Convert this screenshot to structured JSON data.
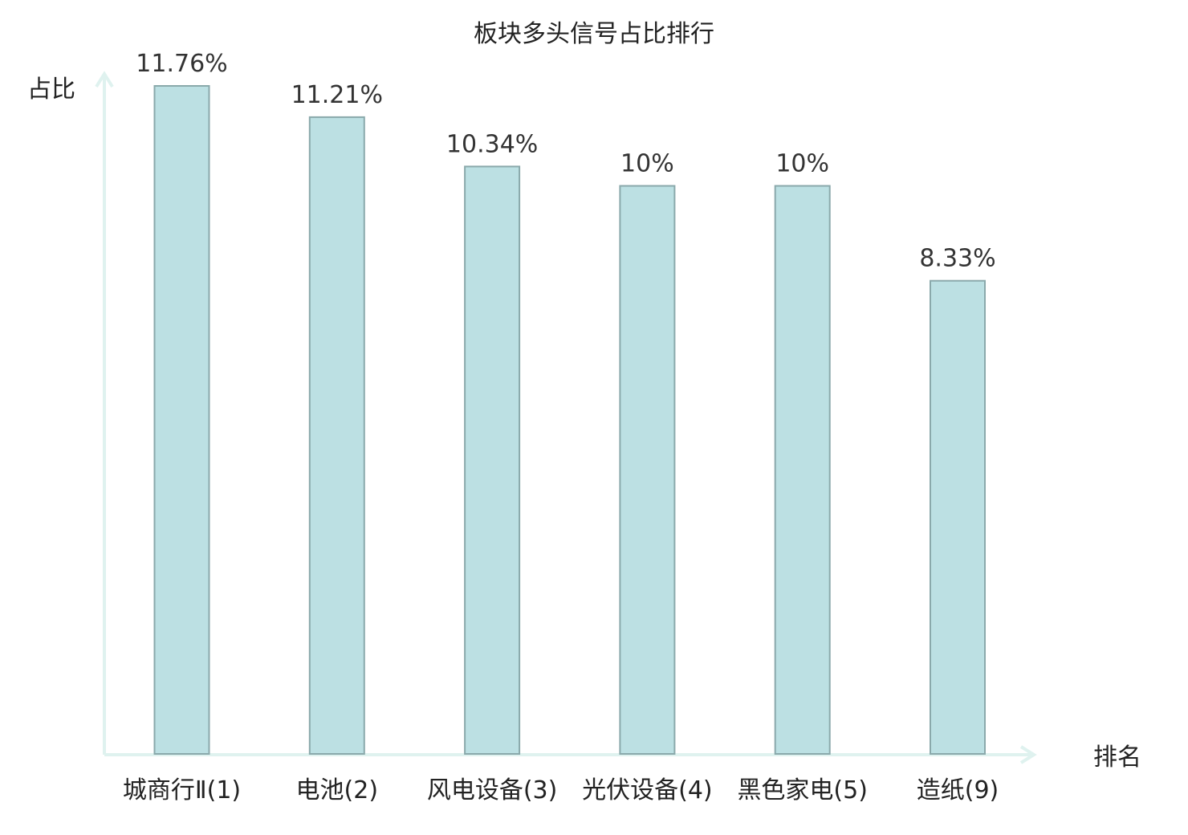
{
  "chart_data": {
    "type": "bar",
    "title": "板块多头信号占比排行",
    "xlabel": "排名",
    "ylabel": "占比",
    "categories": [
      "城商行Ⅱ(1)",
      "电池(2)",
      "风电设备(3)",
      "光伏设备(4)",
      "黑色家电(5)",
      "造纸(9)"
    ],
    "values": [
      11.76,
      11.21,
      10.34,
      10,
      10,
      8.33
    ],
    "value_labels": [
      "11.76%",
      "11.21%",
      "10.34%",
      "10%",
      "10%",
      "8.33%"
    ],
    "ylim": [
      0,
      12
    ],
    "grid": false,
    "bar_color": "#bce0e3",
    "bar_edge_color": "#8aa9ab",
    "axis_color": "#dff2ef",
    "highlight_index": 5,
    "highlight_color": "#e02020"
  }
}
